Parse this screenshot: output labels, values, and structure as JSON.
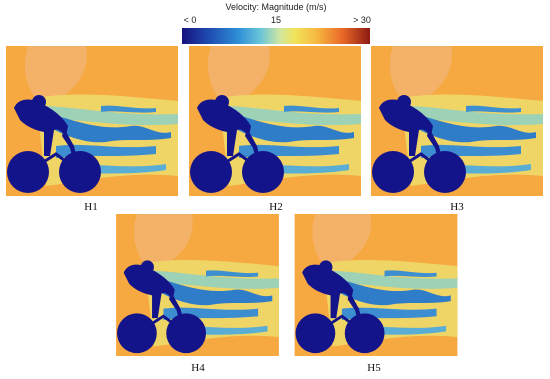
{
  "colorbar": {
    "title": "Velocity: Magnitude (m/s)",
    "ticks": [
      "< 0",
      "15",
      "> 30"
    ]
  },
  "panels": [
    {
      "label": "H1"
    },
    {
      "label": "H2"
    },
    {
      "label": "H3"
    },
    {
      "label": "H4"
    },
    {
      "label": "H5"
    }
  ]
}
